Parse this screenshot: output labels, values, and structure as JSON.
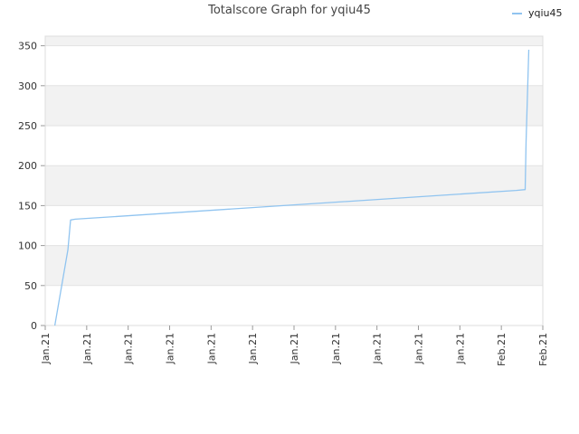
{
  "chart_data": {
    "type": "line",
    "title": "Totalscore Graph for yqiu45",
    "xlabel": "",
    "ylabel": "",
    "ylim": [
      0,
      350
    ],
    "yticks": [
      0,
      50,
      100,
      150,
      200,
      250,
      300,
      350
    ],
    "xticks": [
      "Jan.21",
      "Jan.21",
      "Jan.21",
      "Jan.21",
      "Jan.21",
      "Jan.21",
      "Jan.21",
      "Jan.21",
      "Jan.21",
      "Jan.21",
      "Jan.21",
      "Feb.21",
      "Feb.21"
    ],
    "grid": true,
    "legend_position": "top-right",
    "series": [
      {
        "name": "yqiu45",
        "color": "#90c4f0",
        "points": [
          {
            "x": "Jan.21",
            "y": 0
          },
          {
            "x": "Jan.21",
            "y": 95
          },
          {
            "x": "Jan.21",
            "y": 132
          },
          {
            "x": "Jan.21",
            "y": 133
          },
          {
            "x": "Feb.21",
            "y": 169
          },
          {
            "x": "Feb.21",
            "y": 170
          },
          {
            "x": "Feb.21",
            "y": 230
          },
          {
            "x": "Feb.21",
            "y": 345
          }
        ],
        "x_positions": [
          0.0193,
          0.0456,
          0.0509,
          0.0606,
          0.9464,
          0.9645,
          0.9664,
          0.9718
        ]
      }
    ]
  }
}
